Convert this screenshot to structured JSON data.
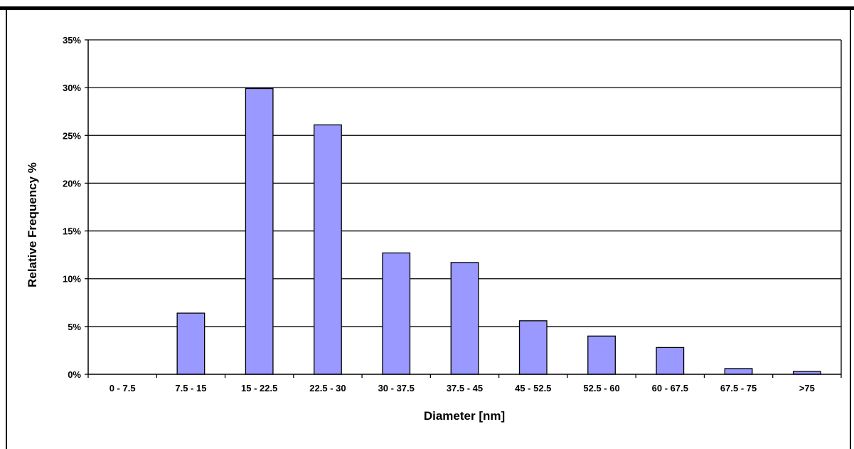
{
  "chart_data": {
    "type": "bar",
    "title": "",
    "xlabel": "Diameter [nm]",
    "ylabel": "Relative Frequency  %",
    "categories": [
      "0 - 7.5",
      "7.5 - 15",
      "15 - 22.5",
      "22.5 - 30",
      "30 - 37.5",
      "37.5 - 45",
      "45 - 52.5",
      "52.5 - 60",
      "60 - 67.5",
      "67.5 - 75",
      ">75"
    ],
    "values": [
      0,
      6.4,
      29.9,
      26.1,
      12.7,
      11.7,
      5.6,
      4.0,
      2.8,
      0.6,
      0.3
    ],
    "ylim": [
      0,
      35
    ],
    "yticks": [
      "0%",
      "5%",
      "10%",
      "15%",
      "20%",
      "25%",
      "30%",
      "35%"
    ],
    "ytick_values": [
      0,
      5,
      10,
      15,
      20,
      25,
      30,
      35
    ],
    "grid": true,
    "legend": "none",
    "bar_color": "#9999ff",
    "bar_edge_color": "#000000"
  }
}
